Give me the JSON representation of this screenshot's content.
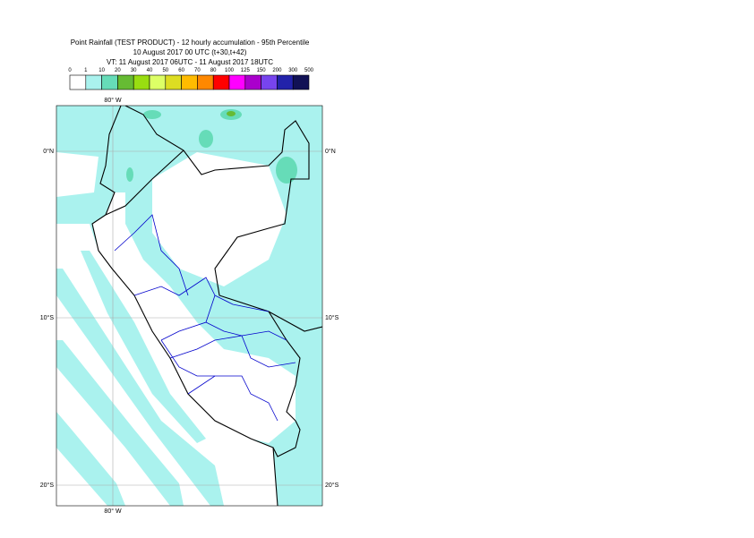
{
  "title": [
    "Point Rainfall (TEST PRODUCT) - 12 hourly accumulation - 95th Percentile",
    "10 August 2017 00 UTC (t+30,t+42)",
    "VT: 11 August 2017 06UTC - 11 August 2017 18UTC"
  ],
  "legend": {
    "labels": [
      "0",
      "1",
      "10",
      "20",
      "30",
      "40",
      "50",
      "60",
      "70",
      "80",
      "100",
      "125",
      "150",
      "200",
      "300",
      "500"
    ],
    "colors": [
      "#ffffff",
      "#aaf2ee",
      "#66dcb8",
      "#66bb33",
      "#99dd11",
      "#ddff66",
      "#dddd22",
      "#ffbb00",
      "#ff8800",
      "#ff0000",
      "#ff00ff",
      "#aa00cc",
      "#7744ee",
      "#2222aa",
      "#111155"
    ]
  },
  "map": {
    "lon_label": "80° W",
    "lat_labels": [
      "0°N",
      "10°S",
      "20°S"
    ]
  }
}
